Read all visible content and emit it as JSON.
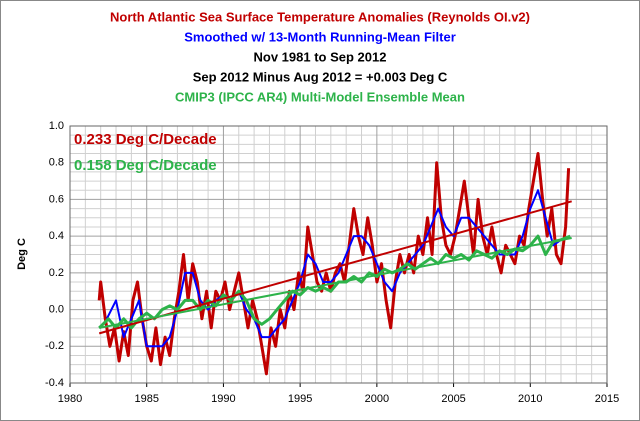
{
  "chart_data": {
    "type": "line",
    "titles": [
      {
        "text": "North Atlantic Sea Surface Temperature Anomalies  (Reynolds OI.v2)",
        "color": "#c00000"
      },
      {
        "text": "Smoothed w/ 13-Month Running-Mean Filter",
        "color": "#0000ff"
      },
      {
        "text": "Nov 1981 to Sep 2012",
        "color": "#000000"
      },
      {
        "text": "Sep 2012 Minus Aug 2012 = +0.003 Deg C",
        "color": "#000000"
      },
      {
        "text": "CMIP3 (IPCC AR4) Multi-Model Ensemble Mean",
        "color": "#2db34a"
      }
    ],
    "annotations": [
      {
        "text": "0.233 Deg C/Decade",
        "color": "#c00000"
      },
      {
        "text": "0.158 Deg C/Decade",
        "color": "#2db34a"
      }
    ],
    "y_label": "Deg C",
    "xlim": [
      1980,
      2015
    ],
    "xticks": [
      1980,
      1985,
      1990,
      1995,
      2000,
      2005,
      2010,
      2015
    ],
    "ylim": [
      -0.4,
      1.0
    ],
    "yticks": [
      -0.4,
      -0.2,
      {
        "value": 0,
        "label": "0.0"
      },
      0.2,
      0.4,
      0.6,
      0.8,
      {
        "value": 1,
        "label": "1.0"
      }
    ],
    "grid": true,
    "minor_grid": {
      "x": 5,
      "y": 4
    },
    "series": [
      {
        "color": "#c00000",
        "width": 3,
        "x": [
          1981.9,
          1982.0,
          1982.3,
          1982.6,
          1982.9,
          1983.2,
          1983.5,
          1983.8,
          1984.1,
          1984.4,
          1984.7,
          1985.0,
          1985.3,
          1985.6,
          1985.9,
          1986.2,
          1986.5,
          1986.8,
          1987.1,
          1987.4,
          1987.7,
          1988.0,
          1988.3,
          1988.6,
          1988.9,
          1989.2,
          1989.5,
          1989.8,
          1990.1,
          1990.4,
          1990.7,
          1991.0,
          1991.3,
          1991.6,
          1991.9,
          1992.2,
          1992.5,
          1992.8,
          1993.1,
          1993.4,
          1993.7,
          1994.0,
          1994.3,
          1994.6,
          1994.9,
          1995.2,
          1995.5,
          1995.8,
          1996.1,
          1996.4,
          1996.7,
          1997.0,
          1997.3,
          1997.6,
          1997.9,
          1998.2,
          1998.5,
          1998.8,
          1999.1,
          1999.4,
          1999.7,
          2000.0,
          2000.3,
          2000.6,
          2000.9,
          2001.2,
          2001.5,
          2001.8,
          2002.1,
          2002.4,
          2002.7,
          2003.0,
          2003.3,
          2003.6,
          2003.9,
          2004.2,
          2004.5,
          2004.8,
          2005.1,
          2005.4,
          2005.7,
          2006.0,
          2006.3,
          2006.6,
          2006.9,
          2007.2,
          2007.5,
          2007.8,
          2008.1,
          2008.4,
          2008.7,
          2009.0,
          2009.3,
          2009.6,
          2009.9,
          2010.2,
          2010.5,
          2010.8,
          2011.1,
          2011.4,
          2011.7,
          2012.0,
          2012.3,
          2012.5
        ],
        "values": [
          0.05,
          0.15,
          -0.05,
          -0.2,
          -0.1,
          -0.28,
          -0.12,
          -0.25,
          0.05,
          0.15,
          -0.05,
          -0.2,
          -0.28,
          -0.1,
          -0.3,
          -0.15,
          -0.25,
          -0.05,
          0.1,
          0.3,
          0.05,
          0.25,
          0.15,
          -0.05,
          0.1,
          -0.1,
          0.1,
          0.05,
          0.15,
          0.0,
          0.1,
          0.2,
          0.05,
          -0.1,
          0.05,
          -0.05,
          -0.2,
          -0.35,
          -0.1,
          -0.2,
          0.0,
          -0.1,
          0.1,
          0.0,
          0.2,
          0.1,
          0.45,
          0.3,
          0.15,
          0.1,
          0.2,
          0.1,
          0.2,
          0.25,
          0.15,
          0.35,
          0.55,
          0.4,
          0.3,
          0.5,
          0.35,
          0.15,
          0.25,
          0.05,
          -0.1,
          0.15,
          0.3,
          0.2,
          0.3,
          0.2,
          0.4,
          0.3,
          0.5,
          0.3,
          0.8,
          0.5,
          0.35,
          0.3,
          0.4,
          0.55,
          0.7,
          0.5,
          0.3,
          0.6,
          0.4,
          0.3,
          0.45,
          0.3,
          0.2,
          0.35,
          0.3,
          0.25,
          0.4,
          0.35,
          0.55,
          0.7,
          0.85,
          0.6,
          0.4,
          0.55,
          0.3,
          0.25,
          0.45,
          0.77
        ]
      },
      {
        "color": "#0000ff",
        "width": 2,
        "x": [
          1982.4,
          1983.0,
          1983.5,
          1984.0,
          1984.5,
          1985.0,
          1985.5,
          1986.0,
          1986.5,
          1987.0,
          1987.5,
          1988.0,
          1988.5,
          1989.0,
          1989.5,
          1990.0,
          1990.5,
          1991.0,
          1991.5,
          1992.0,
          1992.5,
          1993.0,
          1993.5,
          1994.0,
          1994.5,
          1995.0,
          1995.5,
          1996.0,
          1996.5,
          1997.0,
          1997.5,
          1998.0,
          1998.5,
          1999.0,
          1999.5,
          2000.0,
          2000.5,
          2001.0,
          2001.5,
          2002.0,
          2002.5,
          2003.0,
          2003.5,
          2004.0,
          2004.5,
          2005.0,
          2005.5,
          2006.0,
          2006.5,
          2007.0,
          2007.5,
          2008.0,
          2008.5,
          2009.0,
          2009.5,
          2010.0,
          2010.5,
          2011.0,
          2011.5,
          2012.0
        ],
        "values": [
          -0.05,
          0.05,
          -0.15,
          -0.05,
          0.05,
          -0.2,
          -0.2,
          -0.2,
          -0.15,
          0.0,
          0.2,
          0.2,
          0.05,
          0.0,
          0.05,
          0.08,
          0.05,
          0.1,
          0.0,
          -0.05,
          -0.15,
          -0.15,
          -0.1,
          -0.05,
          0.05,
          0.15,
          0.3,
          0.25,
          0.15,
          0.15,
          0.2,
          0.3,
          0.4,
          0.4,
          0.35,
          0.25,
          0.15,
          0.1,
          0.2,
          0.25,
          0.3,
          0.35,
          0.45,
          0.55,
          0.45,
          0.4,
          0.5,
          0.5,
          0.45,
          0.4,
          0.35,
          0.3,
          0.3,
          0.3,
          0.4,
          0.55,
          0.65,
          0.5,
          0.35,
          0.38
        ]
      },
      {
        "color": "#2db34a",
        "width": 3,
        "x": [
          1981.9,
          1982.5,
          1983.0,
          1983.5,
          1984.0,
          1984.5,
          1985.0,
          1985.5,
          1986.0,
          1986.5,
          1987.0,
          1987.5,
          1988.0,
          1988.5,
          1989.0,
          1989.5,
          1990.0,
          1990.5,
          1991.0,
          1991.5,
          1992.0,
          1992.5,
          1993.0,
          1993.5,
          1994.0,
          1994.5,
          1995.0,
          1995.5,
          1996.0,
          1996.5,
          1997.0,
          1997.5,
          1998.0,
          1998.5,
          1999.0,
          1999.5,
          2000.0,
          2000.5,
          2001.0,
          2001.5,
          2002.0,
          2002.5,
          2003.0,
          2003.5,
          2004.0,
          2004.5,
          2005.0,
          2005.5,
          2006.0,
          2006.5,
          2007.0,
          2007.5,
          2008.0,
          2008.5,
          2009.0,
          2009.5,
          2010.0,
          2010.5,
          2011.0,
          2011.5,
          2012.0,
          2012.6
        ],
        "values": [
          -0.1,
          -0.05,
          -0.1,
          -0.05,
          -0.1,
          -0.05,
          -0.02,
          -0.05,
          0.0,
          0.02,
          0.0,
          0.05,
          0.05,
          0.0,
          0.05,
          0.02,
          0.08,
          0.05,
          0.1,
          0.05,
          -0.05,
          -0.08,
          -0.05,
          0.0,
          0.05,
          0.1,
          0.08,
          0.12,
          0.1,
          0.12,
          0.1,
          0.15,
          0.15,
          0.18,
          0.15,
          0.2,
          0.18,
          0.22,
          0.2,
          0.22,
          0.25,
          0.22,
          0.25,
          0.28,
          0.25,
          0.3,
          0.28,
          0.3,
          0.27,
          0.32,
          0.3,
          0.28,
          0.32,
          0.3,
          0.33,
          0.32,
          0.35,
          0.4,
          0.3,
          0.37,
          0.38,
          0.4
        ]
      },
      {
        "color": "#c00000",
        "width": 2,
        "x": [
          1981.9,
          2012.7
        ],
        "values": [
          -0.13,
          0.59
        ]
      },
      {
        "color": "#2db34a",
        "width": 2,
        "x": [
          1981.9,
          2012.7
        ],
        "values": [
          -0.1,
          0.39
        ]
      }
    ]
  }
}
